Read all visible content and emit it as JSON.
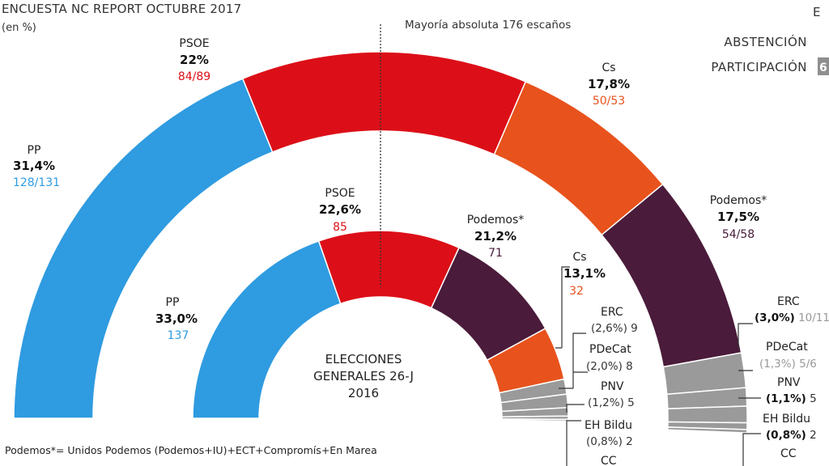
{
  "title": "ENCUESTA NC REPORT OCTUBRE 2017",
  "subtitle": "(en %)",
  "majority_label": "Mayoría absoluta 176 escaños",
  "center_label": [
    "ELECCIONES",
    "GENERALES 26-J",
    "2016"
  ],
  "footnote": "Podemos*= Unidos Podemos (Podemos+IU)+ECT+Compromís+En Marea",
  "turnout": {
    "corner_label": "E",
    "abstencion": "ABSTENCIÓN",
    "participacion": "PARTICIPACIÓN",
    "participacion_box": "6"
  },
  "colors": {
    "PP": "#2f9be0",
    "PSOE": "#dc0f18",
    "Cs": "#e8521c",
    "Podemos": "#4a1b3a",
    "Minor": "#9a9a9a",
    "majority_line": "#333333"
  },
  "chart_data": [
    {
      "type": "pie",
      "subtype": "semicircle",
      "title": "Encuesta NC Report octubre 2017",
      "series": [
        {
          "party": "PP",
          "pct": "31,4%",
          "seats": "128/131",
          "seats_value": 129.5
        },
        {
          "party": "PSOE",
          "pct": "22%",
          "seats": "84/89",
          "seats_value": 86.5
        },
        {
          "party": "Cs",
          "pct": "17,8%",
          "seats": "50/53",
          "seats_value": 51.5
        },
        {
          "party": "Podemos*",
          "pct": "17,5%",
          "seats": "54/58",
          "seats_value": 56
        },
        {
          "party": "ERC",
          "pct": "(3,0%)",
          "seats": "10/11",
          "seats_value": 10.5
        },
        {
          "party": "PDeCat",
          "pct": "(1,3%)",
          "seats": "5/6",
          "seats_value": 5.5
        },
        {
          "party": "PNV",
          "pct": "(1,1%)",
          "seats": "5",
          "seats_value": 5
        },
        {
          "party": "EH Bildu",
          "pct": "(0,8%)",
          "seats": "2",
          "seats_value": 2
        },
        {
          "party": "CC",
          "pct": "",
          "seats": "",
          "seats_value": 1
        }
      ]
    },
    {
      "type": "pie",
      "subtype": "semicircle",
      "title": "Elecciones generales 26-J 2016",
      "series": [
        {
          "party": "PP",
          "pct": "33,0%",
          "seats": "137",
          "seats_value": 137
        },
        {
          "party": "PSOE",
          "pct": "22,6%",
          "seats": "85",
          "seats_value": 85
        },
        {
          "party": "Podemos*",
          "pct": "21,2%",
          "seats": "71",
          "seats_value": 71
        },
        {
          "party": "Cs",
          "pct": "13,1%",
          "seats": "32",
          "seats_value": 32
        },
        {
          "party": "ERC",
          "pct": "(2,6%)",
          "seats": "9",
          "seats_value": 9
        },
        {
          "party": "PDeCat",
          "pct": "(2,0%)",
          "seats": "8",
          "seats_value": 8
        },
        {
          "party": "PNV",
          "pct": "(1,2%)",
          "seats": "5",
          "seats_value": 5
        },
        {
          "party": "EH Bildu",
          "pct": "(0,8%)",
          "seats": "2",
          "seats_value": 2
        },
        {
          "party": "CC",
          "pct": "",
          "seats": "",
          "seats_value": 1
        }
      ]
    }
  ]
}
